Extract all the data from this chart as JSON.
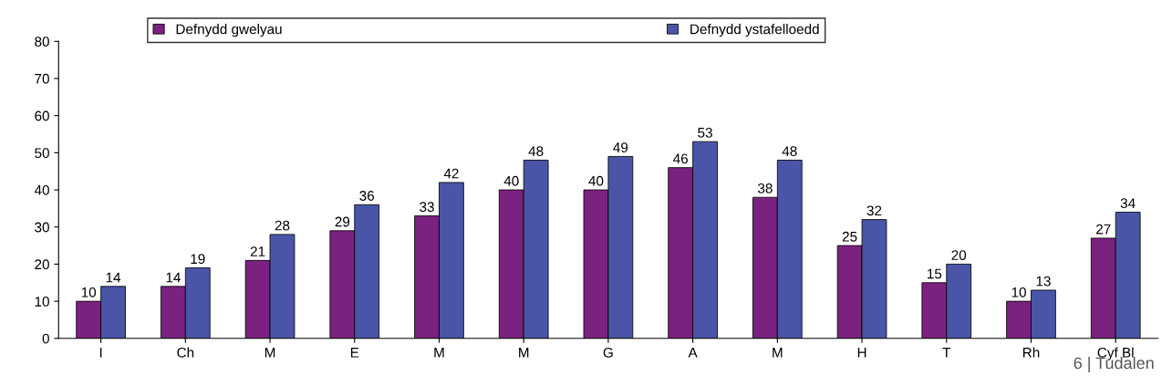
{
  "chart_data": {
    "type": "bar",
    "categories": [
      "I",
      "Ch",
      "M",
      "E",
      "M",
      "M",
      "G",
      "A",
      "M",
      "H",
      "T",
      "Rh",
      "Cyf Bl"
    ],
    "series": [
      {
        "name": "Defnydd gwelyau",
        "color": "#7b2180",
        "values": [
          10,
          14,
          21,
          29,
          33,
          40,
          40,
          46,
          38,
          25,
          15,
          10,
          27
        ]
      },
      {
        "name": "Defnydd ystafelloedd",
        "color": "#4a55a8",
        "values": [
          14,
          19,
          28,
          36,
          42,
          48,
          49,
          53,
          48,
          32,
          20,
          13,
          34
        ]
      }
    ],
    "ylim": [
      0,
      80
    ],
    "yticks": [
      0,
      10,
      20,
      30,
      40,
      50,
      60,
      70,
      80
    ],
    "data_labels": true,
    "grid": false,
    "legend": "top",
    "annotations": [
      "6 | Tudalen"
    ]
  }
}
